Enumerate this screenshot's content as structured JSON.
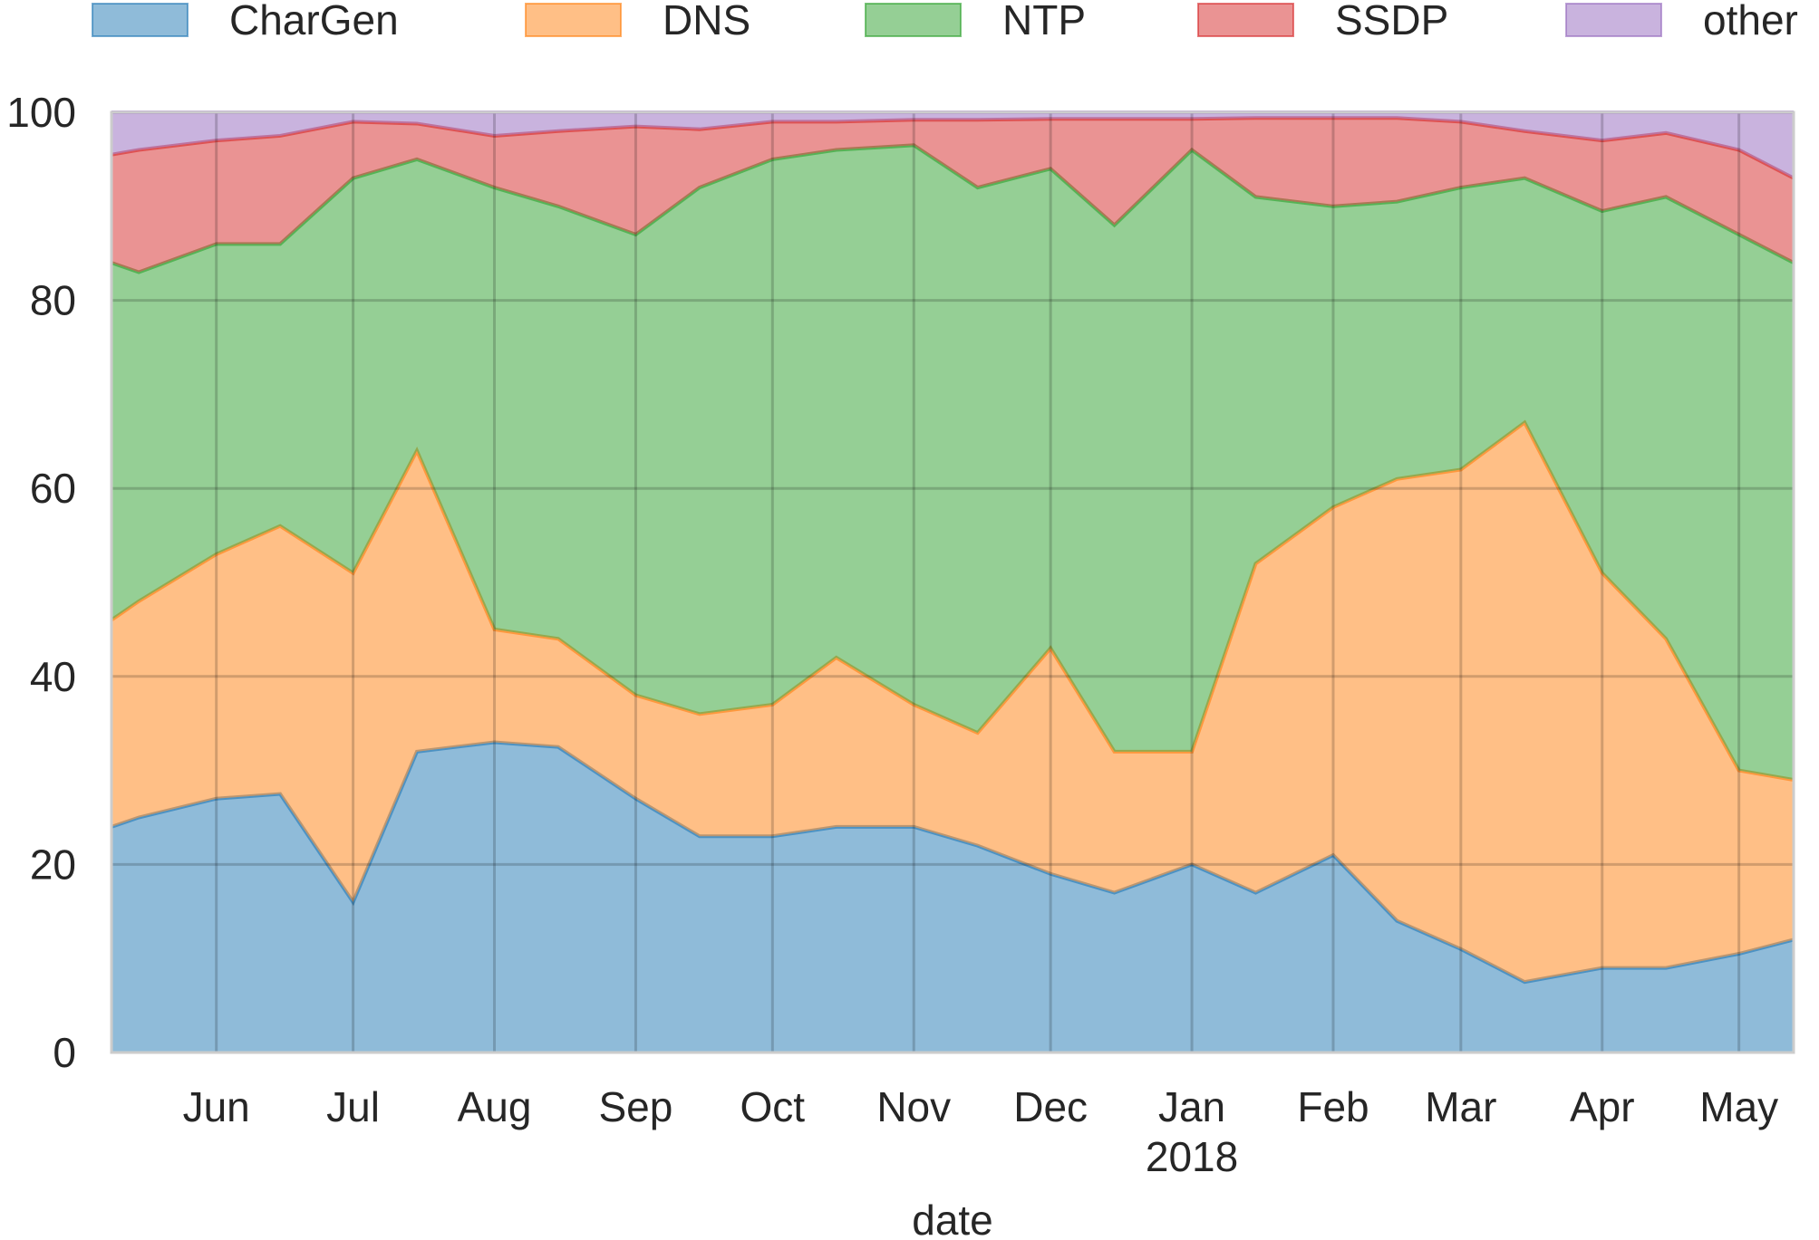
{
  "chart_data": {
    "type": "stacked_area",
    "x_label": "date",
    "x": [
      "2017-05-09",
      "2017-05-15",
      "2017-06-01",
      "2017-06-15",
      "2017-07-01",
      "2017-07-15",
      "2017-08-01",
      "2017-08-15",
      "2017-09-01",
      "2017-09-15",
      "2017-10-01",
      "2017-10-15",
      "2017-11-01",
      "2017-11-15",
      "2017-12-01",
      "2017-12-15",
      "2018-01-01",
      "2018-01-15",
      "2018-02-01",
      "2018-02-15",
      "2018-03-01",
      "2018-03-15",
      "2018-04-01",
      "2018-04-15",
      "2018-05-01",
      "2018-05-13"
    ],
    "series": [
      {
        "name": "CharGen",
        "color": "#1f77b4",
        "values": [
          24,
          25,
          27,
          27.5,
          16,
          32,
          33,
          32.5,
          27,
          23,
          23,
          24,
          24,
          22,
          19,
          17,
          20,
          17,
          21,
          14,
          11,
          7.5,
          9,
          9,
          10.5,
          12
        ]
      },
      {
        "name": "DNS",
        "color": "#ff7f0e",
        "values": [
          22,
          23,
          26,
          28.5,
          35,
          32,
          12,
          11.5,
          11,
          13,
          14,
          18,
          13,
          12,
          24,
          15,
          12,
          35,
          37,
          47,
          51,
          59.5,
          42,
          35,
          19.5,
          17
        ]
      },
      {
        "name": "NTP",
        "color": "#2ca02c",
        "values": [
          38,
          35,
          33,
          30,
          42,
          31,
          47,
          46,
          49,
          56,
          58,
          54,
          59.5,
          58,
          51,
          56,
          64,
          39,
          32,
          29.5,
          30,
          26,
          38.5,
          47,
          57,
          55
        ]
      },
      {
        "name": "SSDP",
        "color": "#d62728",
        "values": [
          11.5,
          13,
          11,
          11.5,
          6,
          3.8,
          5.5,
          8,
          11.5,
          6.2,
          4,
          3,
          2.7,
          7.2,
          5.3,
          11.3,
          3.3,
          8.4,
          9.4,
          8.9,
          7,
          5,
          7.5,
          6.8,
          9,
          9
        ]
      },
      {
        "name": "other",
        "color": "#9467bd",
        "values": [
          4.5,
          4,
          3,
          2.5,
          1,
          1.2,
          2.5,
          2,
          1.5,
          1.8,
          1,
          1,
          0.8,
          0.8,
          0.7,
          0.7,
          0.7,
          0.6,
          0.6,
          0.6,
          1,
          2,
          3,
          2.2,
          4,
          7
        ]
      }
    ],
    "xlim": [
      "2017-05-09",
      "2018-05-13"
    ],
    "xticks": [
      {
        "value": "2017-06-01",
        "label": "Jun"
      },
      {
        "value": "2017-07-01",
        "label": "Jul"
      },
      {
        "value": "2017-08-01",
        "label": "Aug"
      },
      {
        "value": "2017-09-01",
        "label": "Sep"
      },
      {
        "value": "2017-10-01",
        "label": "Oct"
      },
      {
        "value": "2017-11-01",
        "label": "Nov"
      },
      {
        "value": "2017-12-01",
        "label": "Dec"
      },
      {
        "value": "2018-01-01",
        "label": "Jan",
        "sublabel": "2018"
      },
      {
        "value": "2018-02-01",
        "label": "Feb"
      },
      {
        "value": "2018-03-01",
        "label": "Mar"
      },
      {
        "value": "2018-04-01",
        "label": "Apr"
      },
      {
        "value": "2018-05-01",
        "label": "May"
      }
    ],
    "ylim": [
      0,
      100
    ],
    "yticks": [
      0,
      20,
      40,
      60,
      80,
      100
    ],
    "grid": true,
    "legend": "top"
  }
}
